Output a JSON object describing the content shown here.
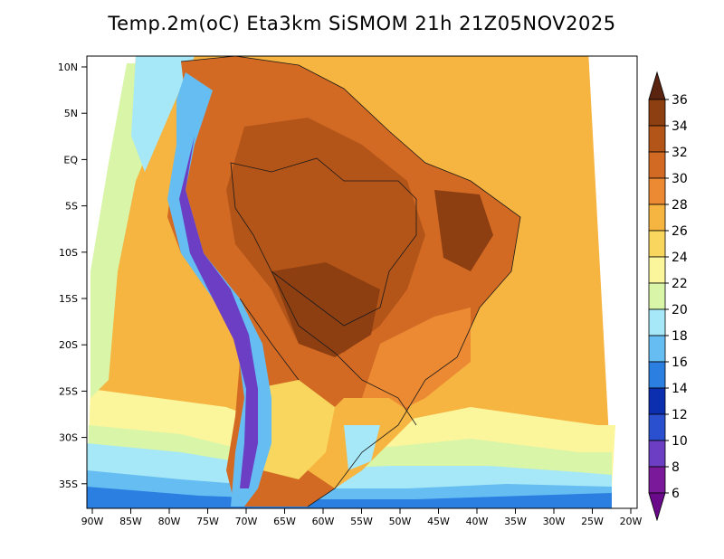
{
  "title": "Temp.2m(oC) Eta3km SiSMOM 21h 21Z05NOV2025",
  "map": {
    "lat_labels": [
      "10N",
      "5N",
      "EQ",
      "5S",
      "10S",
      "15S",
      "20S",
      "25S",
      "30S",
      "35S"
    ],
    "lon_labels": [
      "90W",
      "85W",
      "80W",
      "75W",
      "70W",
      "65W",
      "60W",
      "55W",
      "50W",
      "45W",
      "40W",
      "35W",
      "30W",
      "25W",
      "20W"
    ]
  },
  "colorbar": {
    "labels": [
      "36",
      "34",
      "32",
      "30",
      "28",
      "26",
      "24",
      "22",
      "20",
      "18",
      "16",
      "14",
      "12",
      "10",
      "8",
      "6"
    ],
    "colors": [
      "#6b2a0a",
      "#8e3f12",
      "#b35519",
      "#d36a24",
      "#ec8a33",
      "#f6b440",
      "#f9d75e",
      "#fbf59c",
      "#d8f5a8",
      "#a6e8f7",
      "#66bdf2",
      "#2a7fe0",
      "#0c2fb0",
      "#2a50d0",
      "#6b3ec4",
      "#7a1a9a"
    ],
    "top_color": "#5b2410",
    "bottom_color": "#6a0a8a"
  }
}
